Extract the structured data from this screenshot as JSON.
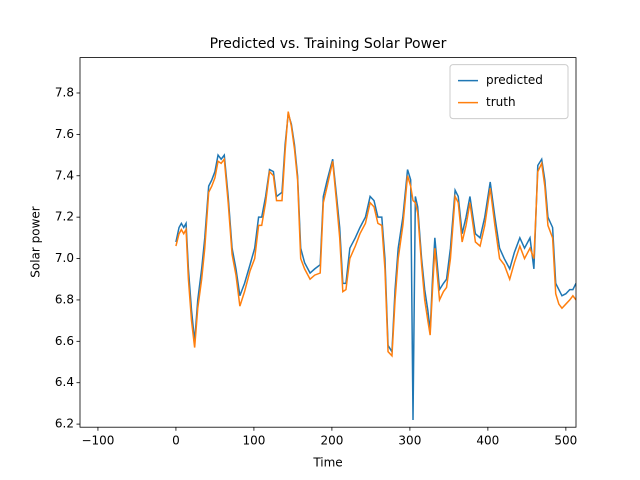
{
  "chart_data": {
    "type": "line",
    "title": "Predicted vs. Training Solar Power",
    "x_label": "Time",
    "y_label": "Solar power",
    "xlim": [
      -123,
      513
    ],
    "ylim": [
      6.185,
      7.971
    ],
    "xticks": [
      {
        "value": -100,
        "label": "−100"
      },
      0,
      100,
      200,
      300,
      400,
      500
    ],
    "yticks": [
      6.2,
      6.4,
      6.6,
      6.8,
      {
        "value": 7,
        "label": "7.0"
      },
      7.2,
      7.4,
      7.6,
      7.8
    ],
    "grid": false,
    "legend": "upper right",
    "x": [
      0,
      4,
      7,
      10,
      13,
      16,
      20,
      24,
      28,
      33,
      37,
      42,
      46,
      50,
      54,
      58,
      62,
      67,
      72,
      77,
      82,
      88,
      95,
      101,
      106,
      110,
      115,
      120,
      125,
      129,
      136,
      140,
      144,
      148,
      152,
      156,
      160,
      165,
      172,
      178,
      185,
      189,
      194,
      201,
      206,
      210,
      214,
      218,
      223,
      230,
      236,
      243,
      249,
      254,
      259,
      264,
      268,
      272,
      277,
      281,
      285,
      291,
      297,
      301,
      304,
      307,
      310,
      315,
      319,
      323,
      326,
      329,
      332,
      338,
      343,
      347,
      352,
      358,
      362,
      367,
      372,
      377,
      384,
      390,
      396,
      403,
      409,
      415,
      421,
      428,
      434,
      441,
      447,
      454,
      459,
      464,
      469,
      473,
      477,
      483,
      487,
      491,
      495,
      500,
      505,
      509,
      513
    ],
    "series": [
      {
        "name": "predicted",
        "color": "#1f77b4",
        "values": [
          7.08,
          7.15,
          7.17,
          7.15,
          7.17,
          6.95,
          6.75,
          6.6,
          6.8,
          6.95,
          7.1,
          7.35,
          7.38,
          7.42,
          7.5,
          7.48,
          7.5,
          7.3,
          7.05,
          6.95,
          6.82,
          6.88,
          6.97,
          7.05,
          7.2,
          7.2,
          7.3,
          7.43,
          7.42,
          7.3,
          7.32,
          7.55,
          7.7,
          7.65,
          7.55,
          7.4,
          7.05,
          6.98,
          6.93,
          6.95,
          6.97,
          7.3,
          7.38,
          7.48,
          7.3,
          7.15,
          6.88,
          6.88,
          7.05,
          7.1,
          7.15,
          7.2,
          7.3,
          7.28,
          7.2,
          7.2,
          7.0,
          6.58,
          6.55,
          6.85,
          7.05,
          7.2,
          7.43,
          7.38,
          6.22,
          7.3,
          7.25,
          7.0,
          6.85,
          6.75,
          6.65,
          6.9,
          7.1,
          6.85,
          6.88,
          6.9,
          7.05,
          7.33,
          7.3,
          7.12,
          7.2,
          7.3,
          7.12,
          7.1,
          7.2,
          7.37,
          7.2,
          7.05,
          7.0,
          6.95,
          7.03,
          7.1,
          7.05,
          7.1,
          6.95,
          7.45,
          7.48,
          7.38,
          7.2,
          7.15,
          6.88,
          6.85,
          6.82,
          6.83,
          6.85,
          6.85,
          6.88
        ]
      },
      {
        "name": "truth",
        "color": "#ff7f0e",
        "values": [
          7.06,
          7.12,
          7.14,
          7.12,
          7.14,
          6.9,
          6.7,
          6.57,
          6.76,
          6.9,
          7.05,
          7.32,
          7.35,
          7.39,
          7.47,
          7.46,
          7.48,
          7.27,
          7.02,
          6.92,
          6.77,
          6.84,
          6.94,
          7.0,
          7.16,
          7.16,
          7.27,
          7.42,
          7.4,
          7.28,
          7.28,
          7.52,
          7.71,
          7.64,
          7.53,
          7.38,
          7.0,
          6.95,
          6.9,
          6.92,
          6.93,
          7.27,
          7.35,
          7.47,
          7.27,
          7.1,
          6.84,
          6.85,
          7.0,
          7.06,
          7.12,
          7.17,
          7.27,
          7.25,
          7.17,
          7.16,
          6.95,
          6.55,
          6.53,
          6.8,
          7.0,
          7.16,
          7.4,
          7.35,
          7.28,
          7.27,
          7.22,
          6.97,
          6.8,
          6.7,
          6.63,
          6.85,
          7.05,
          6.8,
          6.84,
          6.86,
          7.0,
          7.3,
          7.27,
          7.08,
          7.16,
          7.27,
          7.08,
          7.06,
          7.16,
          7.34,
          7.16,
          7.0,
          6.97,
          6.9,
          6.98,
          7.06,
          7.0,
          7.05,
          7.0,
          7.42,
          7.46,
          7.35,
          7.16,
          7.1,
          6.83,
          6.78,
          6.76,
          6.78,
          6.8,
          6.82,
          6.8
        ]
      }
    ]
  }
}
